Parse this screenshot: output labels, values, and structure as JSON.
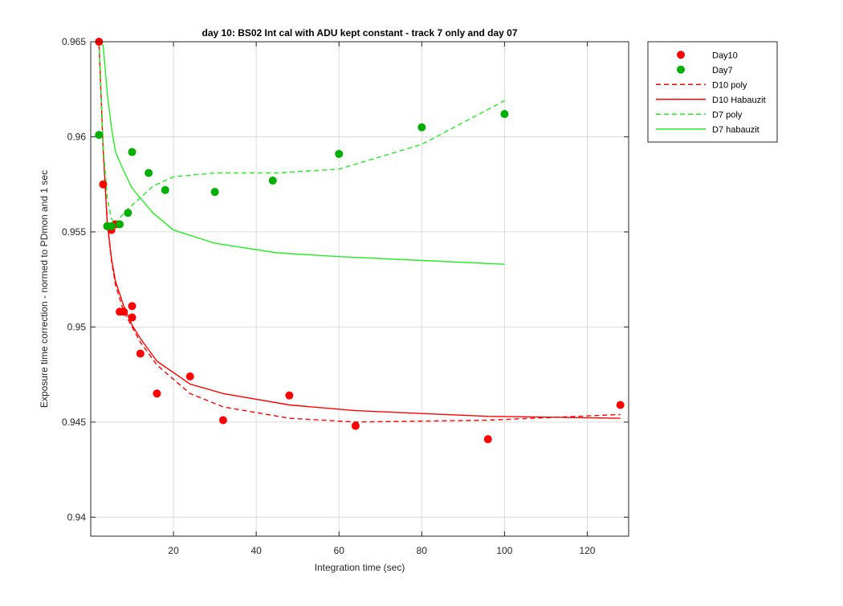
{
  "chart_data": {
    "type": "scatter",
    "title": "day 10: BS02   Int cal with ADU kept constant - track 7 only and day 07",
    "xlabel": "Integration time (sec)",
    "ylabel": "Exposure time correction - normed to PDmon and 1 sec",
    "xlim": [
      0,
      130
    ],
    "ylim": [
      0.939,
      0.965
    ],
    "xticks": [
      20,
      40,
      60,
      80,
      100,
      120
    ],
    "yticks": [
      0.94,
      0.945,
      0.95,
      0.955,
      0.96,
      0.965
    ],
    "xtick_labels": [
      "20",
      "40",
      "60",
      "80",
      "100",
      "120"
    ],
    "ytick_labels": [
      "0.94",
      "0.945",
      "0.95",
      "0.955",
      "0.96",
      "0.965"
    ],
    "grid": true,
    "legend_position": "outside-top-right",
    "colors": {
      "red": "#ff0000",
      "green": "#00b000",
      "lightgreen": "#22ee22",
      "axis": "#262626",
      "grid": "#dcdcdc"
    },
    "series": [
      {
        "name": "Day10",
        "kind": "markers",
        "color": "#ff0000",
        "x": [
          2,
          3,
          4,
          5,
          6,
          7,
          8,
          10,
          10,
          12,
          16,
          24,
          32,
          48,
          64,
          96,
          128
        ],
        "y": [
          0.965,
          0.9575,
          0.9553,
          0.9551,
          0.9554,
          0.9508,
          0.9508,
          0.9511,
          0.9505,
          0.9486,
          0.9465,
          0.9474,
          0.9451,
          0.9464,
          0.9448,
          0.9441,
          0.9459
        ]
      },
      {
        "name": "Day7",
        "kind": "markers",
        "color": "#00b000",
        "x": [
          2,
          4,
          5,
          7,
          9,
          10,
          14,
          18,
          30,
          44,
          60,
          80,
          100
        ],
        "y": [
          0.9601,
          0.9553,
          0.9553,
          0.9554,
          0.956,
          0.9592,
          0.9581,
          0.9572,
          0.9571,
          0.9577,
          0.9591,
          0.9605,
          0.9612
        ]
      },
      {
        "name": "D10 poly",
        "kind": "line",
        "dash": "6,4",
        "color": "#ff0000",
        "x": [
          2,
          3,
          4,
          5,
          6,
          8,
          10,
          12,
          16,
          24,
          32,
          48,
          64,
          96,
          128
        ],
        "y": [
          0.965,
          0.9595,
          0.9555,
          0.9535,
          0.9522,
          0.9508,
          0.95,
          0.9492,
          0.948,
          0.9465,
          0.9458,
          0.9452,
          0.945,
          0.9451,
          0.9454
        ]
      },
      {
        "name": "D10 Habauzit",
        "kind": "line",
        "dash": "",
        "color": "#ff0000",
        "x": [
          2,
          3,
          4,
          5,
          6,
          8,
          10,
          12,
          16,
          24,
          32,
          48,
          64,
          96,
          128
        ],
        "y": [
          0.965,
          0.9593,
          0.9555,
          0.9536,
          0.9524,
          0.9511,
          0.9501,
          0.9494,
          0.9482,
          0.947,
          0.9465,
          0.9459,
          0.9456,
          0.9453,
          0.9452
        ]
      },
      {
        "name": "D7 poly",
        "kind": "line",
        "dash": "6,4",
        "color": "#22ee22",
        "x": [
          2,
          3,
          4,
          5,
          6,
          8,
          10,
          15,
          20,
          30,
          45,
          60,
          80,
          100
        ],
        "y": [
          0.965,
          0.9595,
          0.9568,
          0.9557,
          0.9554,
          0.956,
          0.9564,
          0.9574,
          0.9579,
          0.9581,
          0.9581,
          0.9583,
          0.9596,
          0.9619
        ]
      },
      {
        "name": "D7 habauzit",
        "kind": "line",
        "dash": "",
        "color": "#22ee22",
        "x": [
          2,
          3,
          4,
          5,
          6,
          8,
          10,
          15,
          20,
          30,
          45,
          60,
          80,
          100
        ],
        "y": [
          0.965,
          0.9648,
          0.9623,
          0.9605,
          0.9592,
          0.9582,
          0.9573,
          0.956,
          0.9551,
          0.9544,
          0.9539,
          0.9537,
          0.9535,
          0.9533
        ]
      }
    ]
  }
}
